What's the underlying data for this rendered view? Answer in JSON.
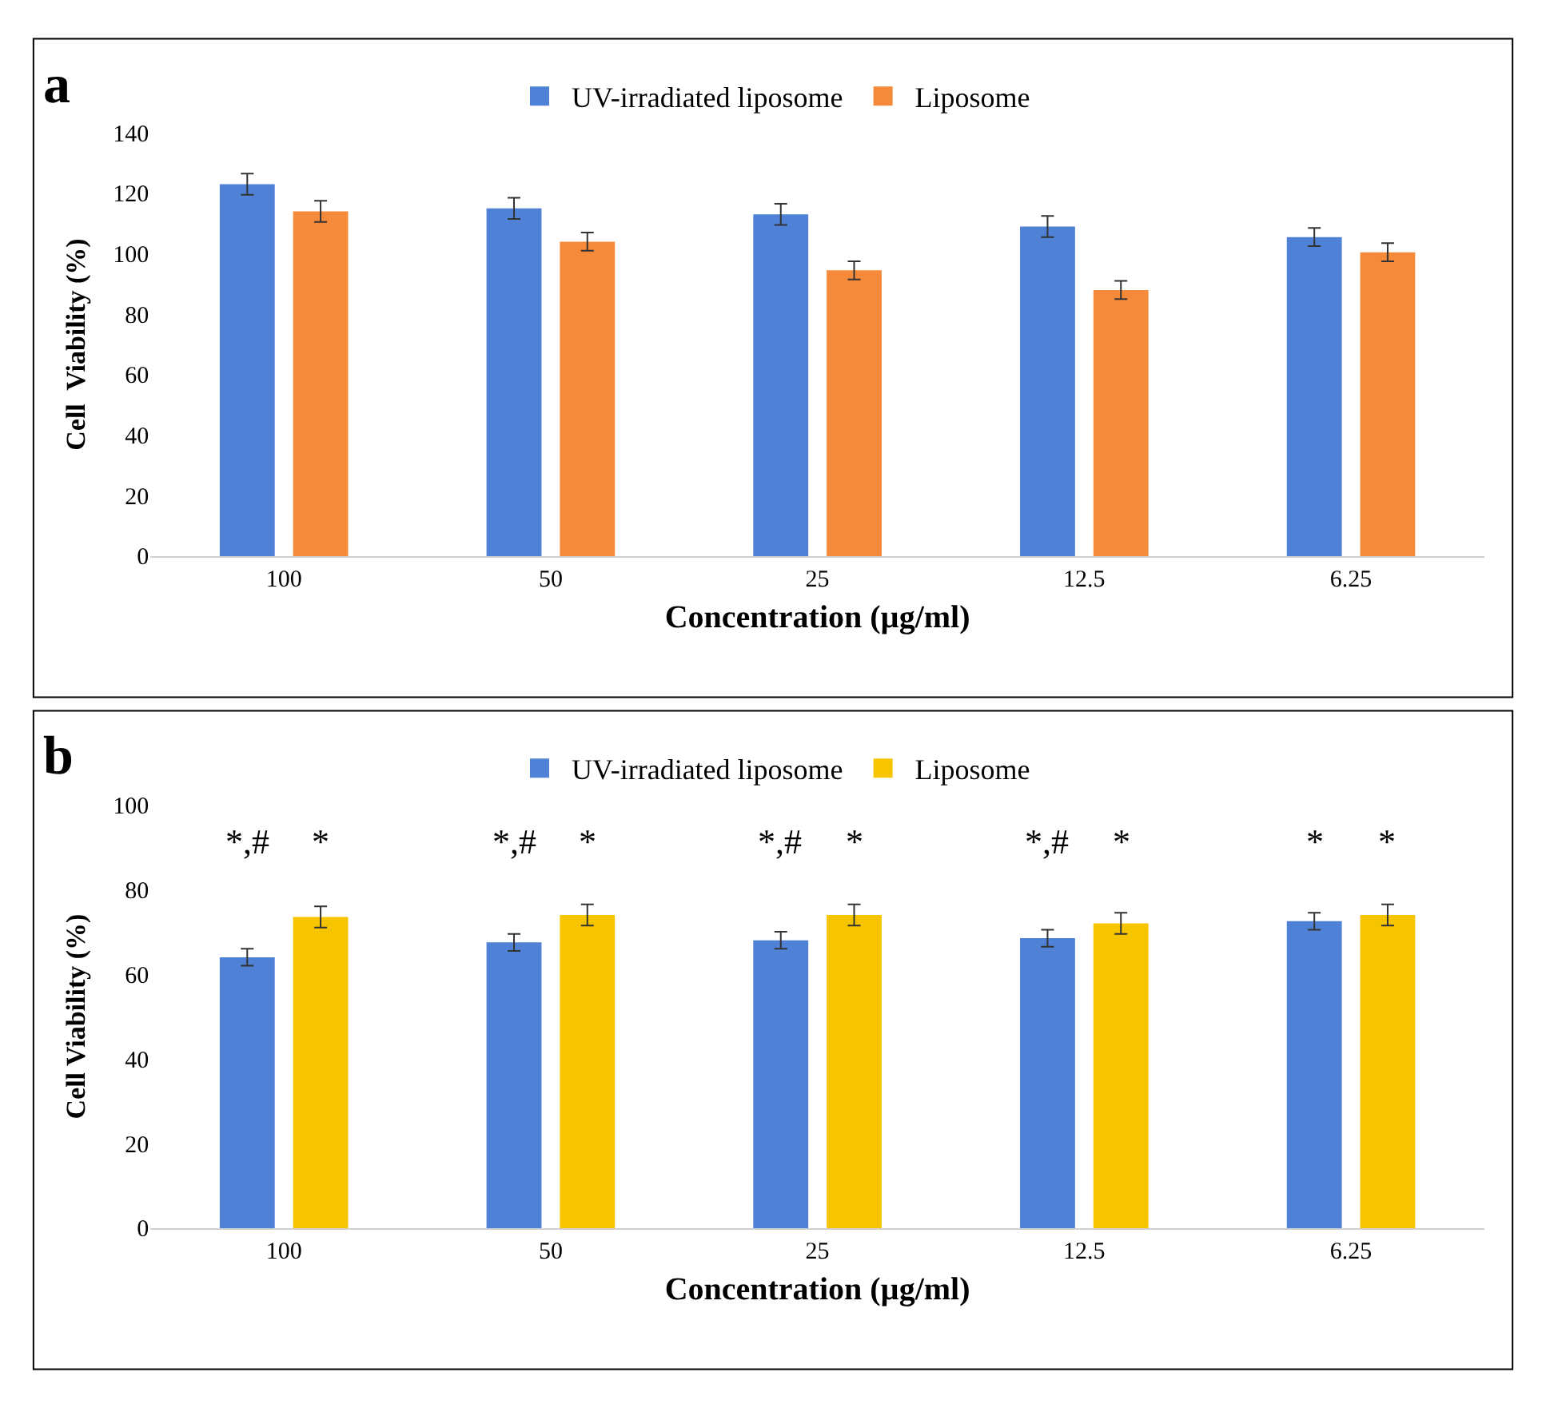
{
  "chart_data": [
    {
      "type": "bar",
      "title": "a",
      "xlabel": "Concentration (µg/ml)",
      "ylabel": "Cell  Viability (%)",
      "categories": [
        "100",
        "50",
        "25",
        "12.5",
        "6.25"
      ],
      "series": [
        {
          "name": "UV-irradiated liposome",
          "color": "#4f81d6",
          "values": [
            123,
            115,
            113,
            109,
            105.5
          ],
          "errors": [
            3.5,
            3.5,
            3.5,
            3.5,
            3
          ]
        },
        {
          "name": "Liposome",
          "color": "#f58a3a",
          "values": [
            114,
            104,
            94.5,
            88,
            100.5
          ],
          "errors": [
            3.5,
            3,
            3,
            3,
            3
          ]
        }
      ],
      "ylim": [
        0,
        140
      ],
      "yticks": [
        0,
        20,
        40,
        60,
        80,
        100,
        120,
        140
      ],
      "grid": false,
      "legend": "top"
    },
    {
      "type": "bar",
      "title": "b",
      "xlabel": "Concentration (µg/ml)",
      "ylabel": "Cell Viability (%)",
      "categories": [
        "100",
        "50",
        "25",
        "12.5",
        "6.25"
      ],
      "series": [
        {
          "name": "UV-irradiated liposome",
          "color": "#4f81d6",
          "values": [
            64,
            67.5,
            68,
            68.5,
            72.5
          ],
          "errors": [
            2,
            2,
            2,
            2,
            2
          ]
        },
        {
          "name": "Liposome",
          "color": "#f7c400",
          "values": [
            73.5,
            74,
            74,
            72,
            74
          ],
          "errors": [
            2.5,
            2.5,
            2.5,
            2.5,
            2.5
          ]
        }
      ],
      "ylim": [
        0,
        100
      ],
      "yticks": [
        0,
        20,
        40,
        60,
        80,
        100
      ],
      "grid": false,
      "legend": "top",
      "annotations": [
        "*,#",
        "*",
        "*,#",
        "*",
        "*,#",
        "*",
        "*,#",
        "*",
        "*",
        "*"
      ]
    }
  ]
}
